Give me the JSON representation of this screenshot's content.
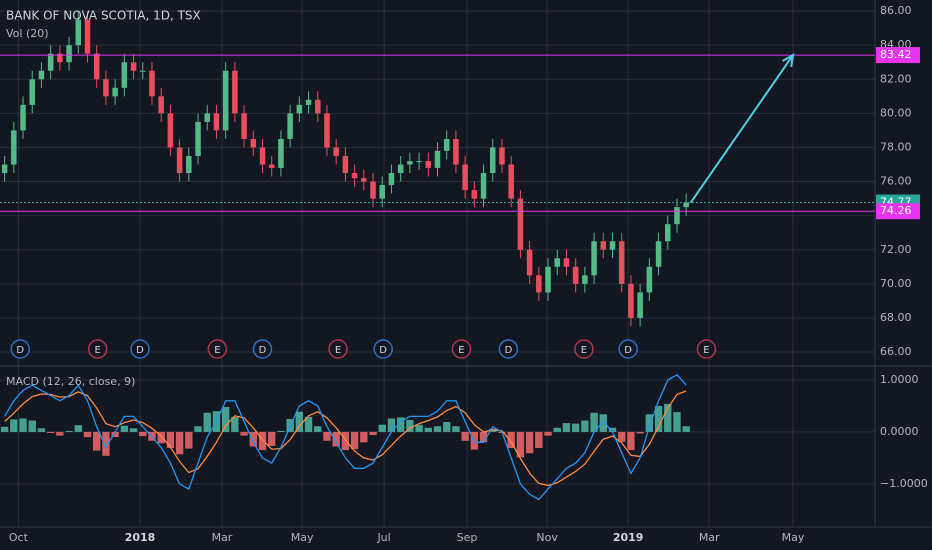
{
  "chart_data": [
    {
      "type": "candlestick",
      "title": "BANK OF NOVA SCOTIA, 1D, TSX",
      "subtitle": "Vol (20)",
      "up_color": "#53b987",
      "down_color": "#eb4d5c",
      "open": [
        76.5,
        77,
        79,
        80.5,
        82,
        82.5,
        83.5,
        83,
        84,
        85.5,
        83.5,
        82,
        81,
        81.5,
        83,
        82.5,
        82.5,
        81,
        80,
        78,
        76.5,
        77.5,
        79.5,
        80,
        79,
        82.5,
        80,
        78.5,
        78,
        77,
        76.8,
        78.5,
        80,
        80.5,
        80.8,
        80,
        78,
        77.5,
        76.5,
        76.2,
        76,
        75,
        75.8,
        76.5,
        77,
        77.2,
        77.2,
        76.8,
        77.8,
        78.5,
        77,
        75.5,
        75,
        76.5,
        78,
        77,
        75,
        72,
        70.5,
        69.5,
        71,
        71.5,
        71,
        70,
        70.5,
        72.5,
        72,
        72.5,
        70,
        68,
        69.5,
        71,
        72.5,
        73.5,
        74.5
      ],
      "high": [
        77.5,
        79.5,
        81,
        82.5,
        83,
        84,
        84,
        84.5,
        86,
        86,
        84,
        82.5,
        82,
        83.5,
        83.5,
        83,
        83,
        81.5,
        80.5,
        78.5,
        78,
        80,
        80.5,
        80.5,
        83,
        83,
        80.5,
        79,
        78.5,
        77.5,
        79,
        80.5,
        81,
        81.3,
        81.3,
        80.5,
        78.5,
        78,
        77,
        76.7,
        76.5,
        76.3,
        77,
        77.5,
        77.7,
        77.7,
        77.7,
        78.3,
        79,
        79,
        77.5,
        76,
        77,
        78.5,
        78.5,
        77.5,
        75.5,
        72.5,
        71,
        71.5,
        72,
        72,
        71.5,
        71,
        73,
        73,
        73,
        73,
        70.5,
        70,
        71.5,
        73,
        74,
        75,
        75.3
      ],
      "low": [
        76,
        76.5,
        78.5,
        80,
        81.5,
        82,
        82.5,
        82.5,
        83.5,
        83,
        81.5,
        80.5,
        80.5,
        81,
        82,
        82,
        80.5,
        79.5,
        77.5,
        76,
        76,
        77,
        79,
        78.5,
        78.5,
        79.5,
        78,
        77.5,
        76.5,
        76.3,
        76.3,
        78,
        79.5,
        80,
        79.5,
        77.5,
        77,
        76,
        75.7,
        75.5,
        74.5,
        74.5,
        75.3,
        76,
        76.5,
        76.7,
        76.3,
        76.3,
        77.3,
        76.5,
        75,
        74.5,
        74.5,
        76,
        76.5,
        74.5,
        71.5,
        70,
        69,
        69,
        70.5,
        70.5,
        69.5,
        69.5,
        70,
        71.5,
        71.5,
        69.5,
        67.5,
        67.5,
        69,
        70.5,
        72,
        73,
        74
      ],
      "close": [
        77,
        79,
        80.5,
        82,
        82.5,
        83.5,
        83,
        84,
        85.5,
        83.5,
        82,
        81,
        81.5,
        83,
        82.5,
        82.5,
        81,
        80,
        78,
        76.5,
        77.5,
        79.5,
        80,
        79,
        82.5,
        80,
        78.5,
        78,
        77,
        76.8,
        78.5,
        80,
        80.5,
        80.8,
        80,
        78,
        77.5,
        76.5,
        76.2,
        76,
        75,
        75.8,
        76.5,
        77,
        77.2,
        77.2,
        76.8,
        77.8,
        78.5,
        77,
        75.5,
        75,
        76.5,
        78,
        77,
        75,
        72,
        70.5,
        69.5,
        71,
        71.5,
        71,
        70,
        70.5,
        72.5,
        72,
        72.5,
        70,
        68,
        69.5,
        71,
        72.5,
        73.5,
        74.5,
        74.77
      ],
      "xlim": [
        -0.5,
        94.5
      ],
      "xticks": [
        {
          "value": 1.5,
          "label": "Oct"
        },
        {
          "value": 14.7,
          "label": "2018"
        },
        {
          "value": 23.6,
          "label": "Mar"
        },
        {
          "value": 32.3,
          "label": "May"
        },
        {
          "value": 41.2,
          "label": "Jul"
        },
        {
          "value": 50.2,
          "label": "Sep"
        },
        {
          "value": 58.9,
          "label": "Nov"
        },
        {
          "value": 67.7,
          "label": "2019"
        },
        {
          "value": 76.5,
          "label": "Mar"
        },
        {
          "value": 85.6,
          "label": "May"
        }
      ],
      "ylim": [
        65.24,
        86.65
      ],
      "yticks": [
        {
          "value": 66,
          "label": "66.00"
        },
        {
          "value": 68,
          "label": "68.00"
        },
        {
          "value": 70,
          "label": "70.00"
        },
        {
          "value": 72,
          "label": "72.00"
        },
        {
          "value": 74,
          "label": "74.00"
        },
        {
          "value": 76,
          "label": "76.00"
        },
        {
          "value": 78,
          "label": "78.00"
        },
        {
          "value": 80,
          "label": "80.00"
        },
        {
          "value": 82,
          "label": "82.00"
        },
        {
          "value": 84,
          "label": "84.00"
        },
        {
          "value": 86,
          "label": "86.00"
        }
      ],
      "hlines": [
        {
          "value": 83.42,
          "color": "#e535f0",
          "style": "solid"
        },
        {
          "value": 74.77,
          "color": "#26a69a",
          "style": "dotted"
        },
        {
          "value": 74.26,
          "color": "#e535f0",
          "style": "solid"
        }
      ],
      "arrow": {
        "x": [
          74.5,
          85.6
        ],
        "y": [
          74.77,
          83.42
        ],
        "color": "#4dd0e1"
      },
      "events": [
        {
          "label": "D",
          "x": 1.7,
          "color": "#2a73c2"
        },
        {
          "label": "E",
          "x": 10.1,
          "color": "#b0374c"
        },
        {
          "label": "D",
          "x": 14.7,
          "color": "#2a73c2"
        },
        {
          "label": "E",
          "x": 23.1,
          "color": "#b0374c"
        },
        {
          "label": "D",
          "x": 28,
          "color": "#2a73c2"
        },
        {
          "label": "E",
          "x": 36.2,
          "color": "#b0374c"
        },
        {
          "label": "D",
          "x": 41.1,
          "color": "#2a73c2"
        },
        {
          "label": "E",
          "x": 49.6,
          "color": "#b0374c"
        },
        {
          "label": "D",
          "x": 54.7,
          "color": "#2a73c2"
        },
        {
          "label": "E",
          "x": 62.9,
          "color": "#b0374c"
        },
        {
          "label": "D",
          "x": 67.7,
          "color": "#2a73c2"
        },
        {
          "label": "E",
          "x": 76.2,
          "color": "#b0374c"
        }
      ]
    },
    {
      "type": "macd",
      "title": "MACD (12, 26, close, 9)",
      "macd": {
        "color": "#2196f3",
        "values": [
          0.3,
          0.6,
          0.8,
          0.9,
          0.8,
          0.7,
          0.6,
          0.7,
          0.9,
          0.6,
          0.1,
          -0.3,
          0.0,
          0.3,
          0.3,
          0.1,
          -0.1,
          -0.3,
          -0.6,
          -1.0,
          -1.1,
          -0.6,
          -0.1,
          0.2,
          0.6,
          0.6,
          0.2,
          -0.2,
          -0.5,
          -0.6,
          -0.3,
          0.1,
          0.5,
          0.6,
          0.5,
          0.1,
          -0.2,
          -0.5,
          -0.7,
          -0.7,
          -0.6,
          -0.3,
          0.0,
          0.2,
          0.3,
          0.3,
          0.3,
          0.4,
          0.6,
          0.6,
          0.2,
          -0.2,
          -0.2,
          0.1,
          0.0,
          -0.5,
          -1.0,
          -1.2,
          -1.3,
          -1.1,
          -0.9,
          -0.7,
          -0.6,
          -0.4,
          0.0,
          0.2,
          0.0,
          -0.4,
          -0.8,
          -0.5,
          0.1,
          0.6,
          1.0,
          1.1,
          0.9
        ]
      },
      "signal": {
        "color": "#ff8a3d",
        "values": [
          0.2,
          0.36,
          0.54,
          0.68,
          0.73,
          0.72,
          0.67,
          0.68,
          0.77,
          0.7,
          0.46,
          0.16,
          0.1,
          0.18,
          0.23,
          0.18,
          0.07,
          -0.08,
          -0.29,
          -0.57,
          -0.78,
          -0.71,
          -0.47,
          -0.2,
          0.12,
          0.31,
          0.27,
          0.08,
          -0.15,
          -0.33,
          -0.32,
          -0.15,
          0.11,
          0.31,
          0.39,
          0.27,
          0.08,
          -0.15,
          -0.37,
          -0.5,
          -0.54,
          -0.44,
          -0.26,
          -0.08,
          0.07,
          0.16,
          0.22,
          0.29,
          0.41,
          0.49,
          0.37,
          0.14,
          0.0,
          0.04,
          0.02,
          -0.19,
          -0.51,
          -0.79,
          -0.99,
          -1.03,
          -0.98,
          -0.87,
          -0.76,
          -0.62,
          -0.37,
          -0.14,
          -0.08,
          -0.21,
          -0.45,
          -0.47,
          -0.24,
          0.1,
          0.46,
          0.72,
          0.79
        ]
      },
      "histogram": {
        "up_color": "#4fb8a5",
        "down_color": "#f26b6b",
        "values": [
          0.1,
          0.24,
          0.26,
          0.22,
          0.07,
          -0.02,
          -0.07,
          0.02,
          0.13,
          -0.1,
          -0.36,
          -0.46,
          -0.1,
          0.12,
          0.07,
          -0.08,
          -0.17,
          -0.22,
          -0.31,
          -0.43,
          -0.32,
          0.11,
          0.37,
          0.4,
          0.48,
          0.29,
          -0.07,
          -0.28,
          -0.35,
          -0.27,
          0.02,
          0.25,
          0.39,
          0.29,
          0.11,
          -0.17,
          -0.28,
          -0.35,
          -0.33,
          -0.2,
          -0.06,
          0.14,
          0.26,
          0.28,
          0.23,
          0.14,
          0.08,
          0.11,
          0.19,
          0.11,
          -0.17,
          -0.34,
          -0.2,
          0.06,
          -0.02,
          -0.31,
          -0.49,
          -0.41,
          -0.31,
          -0.07,
          0.08,
          0.17,
          0.16,
          0.22,
          0.37,
          0.34,
          0.08,
          -0.19,
          -0.35,
          -0.03,
          0.34,
          0.5,
          0.54,
          0.38,
          0.11
        ]
      },
      "ylim": [
        -1.83,
        1.25
      ],
      "yticks": [
        {
          "value": 1,
          "label": "1.0000"
        },
        {
          "value": 0,
          "label": "0.0000"
        },
        {
          "value": -1,
          "label": "−1.0000"
        }
      ]
    }
  ]
}
